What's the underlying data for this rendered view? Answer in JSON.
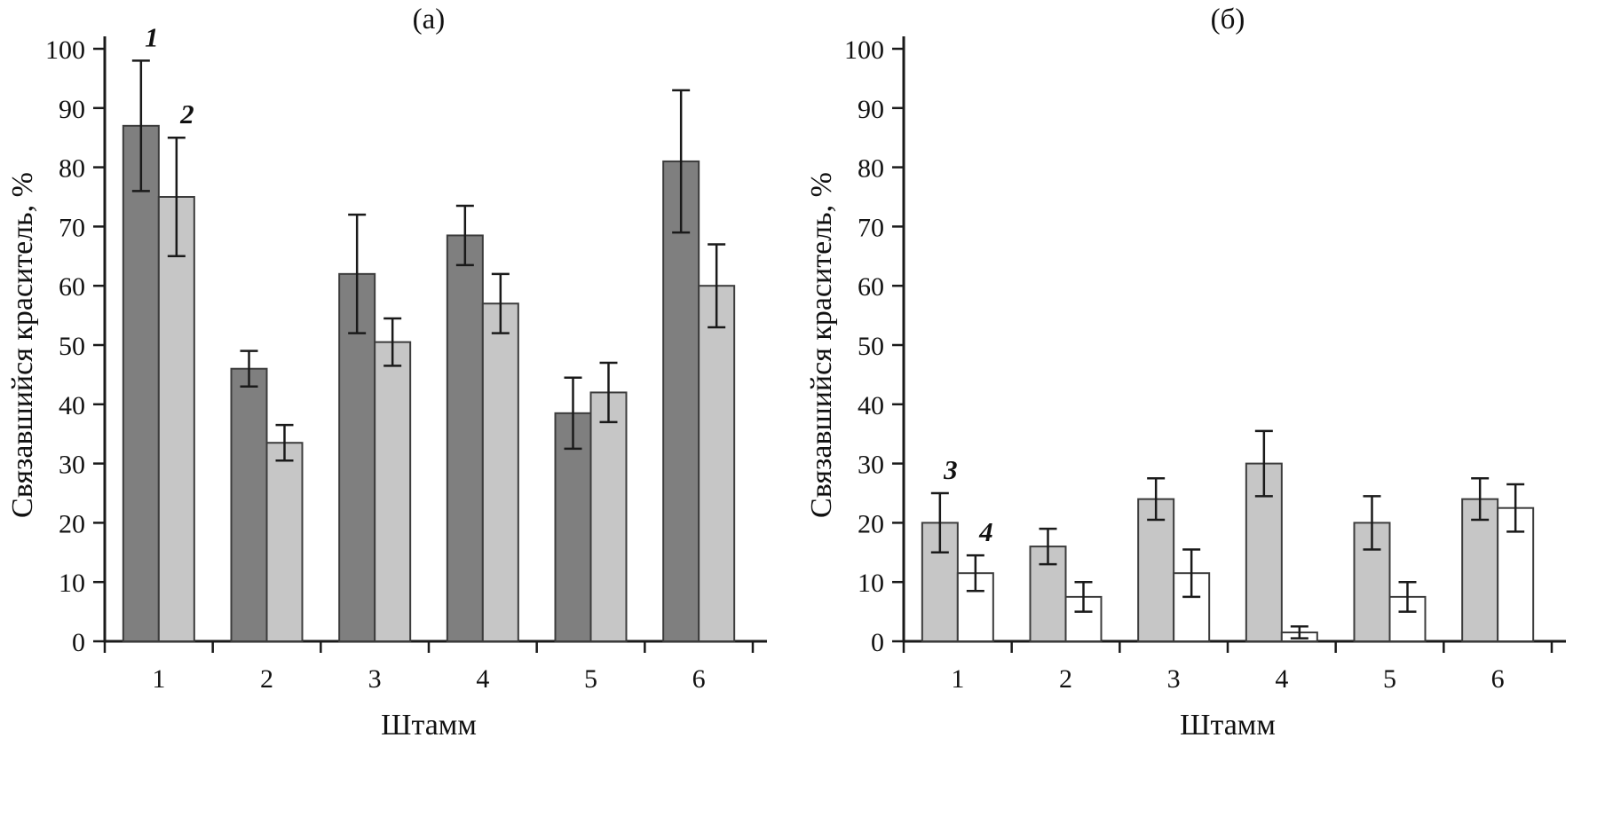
{
  "chart_data": [
    {
      "id": "a",
      "type": "bar",
      "title": "(а)",
      "ylabel": "Связавшийся краситель, %",
      "xlabel": "Штамм",
      "ylim": [
        0,
        100
      ],
      "ytick_step": 10,
      "grid": false,
      "legend": "inline italic numerals above first bar group",
      "categories": [
        "1",
        "2",
        "3",
        "4",
        "5",
        "6"
      ],
      "series": [
        {
          "name": "1",
          "fill": "#7f7f7f",
          "stroke": "#3c3c3c",
          "values": [
            87,
            46,
            62,
            68.5,
            38.5,
            81
          ],
          "errors": [
            11,
            3,
            10,
            5,
            6,
            12
          ]
        },
        {
          "name": "2",
          "fill": "#c6c6c6",
          "stroke": "#3c3c3c",
          "values": [
            75,
            33.5,
            50.5,
            57,
            42,
            60
          ],
          "errors": [
            10,
            3,
            4,
            5,
            5,
            7
          ]
        }
      ]
    },
    {
      "id": "b",
      "type": "bar",
      "title": "(б)",
      "ylabel": "Связавшийся краситель, %",
      "xlabel": "Штамм",
      "ylim": [
        0,
        100
      ],
      "ytick_step": 10,
      "grid": false,
      "legend": "inline italic numerals above first bar group",
      "categories": [
        "1",
        "2",
        "3",
        "4",
        "5",
        "6"
      ],
      "series": [
        {
          "name": "3",
          "fill": "#c6c6c6",
          "stroke": "#3c3c3c",
          "values": [
            20,
            16,
            24,
            30,
            20,
            24
          ],
          "errors": [
            5,
            3,
            3.5,
            5.5,
            4.5,
            3.5
          ]
        },
        {
          "name": "4",
          "fill": "#ffffff",
          "stroke": "#3c3c3c",
          "values": [
            11.5,
            7.5,
            11.5,
            1.5,
            7.5,
            22.5
          ],
          "errors": [
            3,
            2.5,
            4,
            1,
            2.5,
            4
          ]
        }
      ]
    }
  ],
  "colors": {
    "axis": "#1a1a1a",
    "dark_bar": "#7f7f7f",
    "light_bar": "#c6c6c6",
    "white_bar": "#ffffff",
    "background": "#ffffff"
  }
}
